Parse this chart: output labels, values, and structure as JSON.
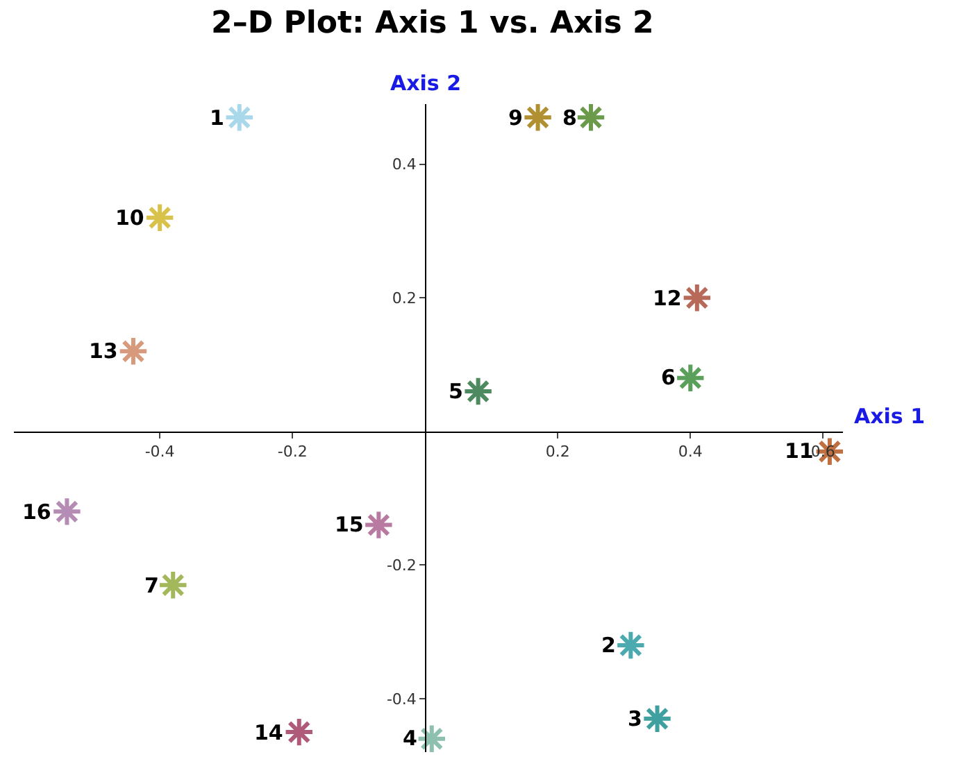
{
  "chart_data": {
    "type": "scatter",
    "title": "2–D Plot: Axis 1 vs. Axis 2",
    "xlabel": "Axis 1",
    "ylabel": "Axis 2",
    "x": [
      -0.28,
      0.31,
      0.35,
      0.01,
      0.08,
      0.4,
      -0.38,
      0.25,
      0.17,
      -0.4,
      0.61,
      0.41,
      -0.44,
      -0.19,
      -0.07,
      -0.54
    ],
    "values": [
      0.47,
      -0.32,
      -0.43,
      -0.46,
      0.06,
      0.08,
      -0.23,
      0.47,
      0.47,
      0.32,
      -0.03,
      0.2,
      0.12,
      -0.45,
      -0.14,
      -0.12
    ],
    "colors": [
      "#a8d8ea",
      "#4aaab0",
      "#40a0a0",
      "#8ec0b0",
      "#4e8a60",
      "#5aa05a",
      "#a3b85a",
      "#6a9a4a",
      "#b09030",
      "#d9c24a",
      "#c07040",
      "#b86a5a",
      "#d79a7c",
      "#b05a7a",
      "#b87aa0",
      "#b48cb4"
    ],
    "annotations": [
      {
        "text": "1",
        "x": -0.28,
        "y": 0.47
      },
      {
        "text": "2",
        "x": 0.31,
        "y": -0.32
      },
      {
        "text": "3",
        "x": 0.35,
        "y": -0.43
      },
      {
        "text": "4",
        "x": 0.01,
        "y": -0.46
      },
      {
        "text": "5",
        "x": 0.08,
        "y": 0.06
      },
      {
        "text": "6",
        "x": 0.4,
        "y": 0.08
      },
      {
        "text": "7",
        "x": -0.38,
        "y": -0.23
      },
      {
        "text": "8",
        "x": 0.25,
        "y": 0.47
      },
      {
        "text": "9",
        "x": 0.17,
        "y": 0.47
      },
      {
        "text": "10",
        "x": -0.4,
        "y": 0.32
      },
      {
        "text": "11",
        "x": 0.61,
        "y": -0.03
      },
      {
        "text": "12",
        "x": 0.41,
        "y": 0.2
      },
      {
        "text": "13",
        "x": -0.44,
        "y": 0.12
      },
      {
        "text": "14",
        "x": -0.19,
        "y": -0.45
      },
      {
        "text": "15",
        "x": -0.07,
        "y": -0.14
      },
      {
        "text": "16",
        "x": -0.54,
        "y": -0.12
      }
    ],
    "xlim": [
      -0.62,
      0.63
    ],
    "ylim": [
      -0.48,
      0.49
    ],
    "xticks": [
      -0.4,
      -0.2,
      0.2,
      0.4,
      0.6
    ],
    "yticks": [
      -0.4,
      -0.2,
      0.2,
      0.4
    ],
    "marker": "cross",
    "legend": false
  }
}
